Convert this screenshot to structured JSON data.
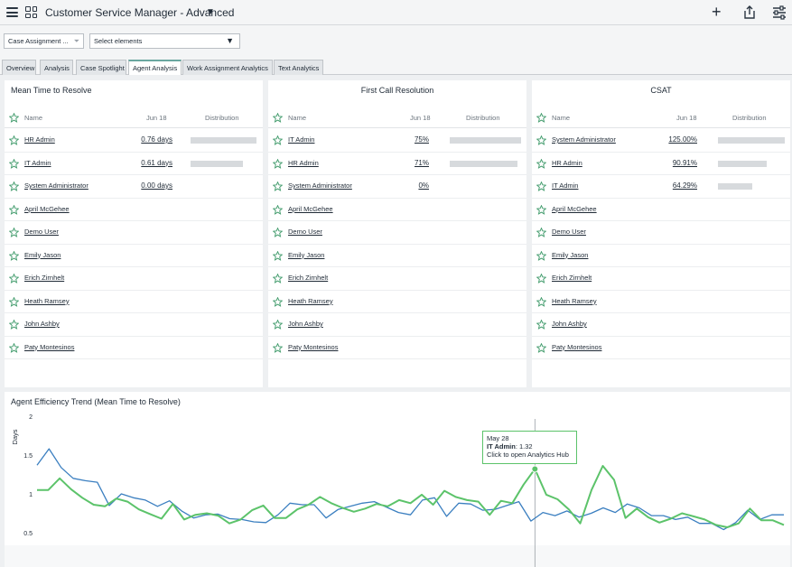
{
  "header": {
    "title": "Customer Service Manager - Advanced",
    "menu_icon": "hamburger-icon",
    "apps_icon": "grid-icon",
    "caret_icon": "caret-down-icon",
    "add_icon": "plus-icon",
    "share_icon": "share-icon",
    "settings_icon": "sliders-icon"
  },
  "filters": {
    "filter_select": "Case Assignment ...",
    "elements_select": "Select elements"
  },
  "tabs": [
    {
      "label": "Overview"
    },
    {
      "label": "Analysis"
    },
    {
      "label": "Case Spotlight"
    },
    {
      "label": "Agent Analysis"
    },
    {
      "label": "Work Assignment Analytics"
    },
    {
      "label": "Text Analytics"
    }
  ],
  "active_tab": "Agent Analysis",
  "panels": [
    {
      "title": "Mean Time to Resolve",
      "columns": {
        "name": "Name",
        "date": "Jun 18",
        "dist": "Distribution"
      },
      "rows": [
        {
          "name": "HR Admin",
          "value": "0.76 days",
          "share": 1.0
        },
        {
          "name": "IT Admin",
          "value": "0.61 days",
          "share": 0.8
        },
        {
          "name": "System Administrator",
          "value": "0.00 days",
          "share": 0
        },
        {
          "name": "April McGehee",
          "value": ""
        },
        {
          "name": "Demo User",
          "value": ""
        },
        {
          "name": "Emily Jason",
          "value": ""
        },
        {
          "name": "Erich Zirnhelt",
          "value": ""
        },
        {
          "name": "Heath Ramsey",
          "value": ""
        },
        {
          "name": "John Ashby",
          "value": ""
        },
        {
          "name": "Paty Montesinos",
          "value": ""
        }
      ]
    },
    {
      "title": "First Call Resolution",
      "columns": {
        "name": "Name",
        "date": "Jun 18",
        "dist": "Distribution"
      },
      "rows": [
        {
          "name": "IT Admin",
          "value": "75%",
          "share": 1.0
        },
        {
          "name": "HR Admin",
          "value": "71%",
          "share": 0.95
        },
        {
          "name": "System Administrator",
          "value": "0%",
          "share": 0
        },
        {
          "name": "April McGehee",
          "value": ""
        },
        {
          "name": "Demo User",
          "value": ""
        },
        {
          "name": "Emily Jason",
          "value": ""
        },
        {
          "name": "Erich Zirnhelt",
          "value": ""
        },
        {
          "name": "Heath Ramsey",
          "value": ""
        },
        {
          "name": "John Ashby",
          "value": ""
        },
        {
          "name": "Paty Montesinos",
          "value": ""
        }
      ]
    },
    {
      "title": "CSAT",
      "columns": {
        "name": "Name",
        "date": "Jun 18",
        "dist": "Distribution"
      },
      "rows": [
        {
          "name": "System Administrator",
          "value": "125.00%",
          "share": 1.0
        },
        {
          "name": "HR Admin",
          "value": "90.91%",
          "share": 0.73
        },
        {
          "name": "IT Admin",
          "value": "64.29%",
          "share": 0.51
        },
        {
          "name": "April McGehee",
          "value": ""
        },
        {
          "name": "Demo User",
          "value": ""
        },
        {
          "name": "Emily Jason",
          "value": ""
        },
        {
          "name": "Erich Zirnhelt",
          "value": ""
        },
        {
          "name": "Heath Ramsey",
          "value": ""
        },
        {
          "name": "John Ashby",
          "value": ""
        },
        {
          "name": "Paty Montesinos",
          "value": ""
        }
      ]
    }
  ],
  "colors": {
    "green": "#5cc36a",
    "blue": "#3b7fc0",
    "bar": "#d7dadd"
  },
  "chart_data": {
    "type": "line",
    "title": "Agent Efficiency Trend (Mean Time to Resolve)",
    "ylabel": "Days",
    "ylim": [
      0.5,
      2
    ],
    "yticks": [
      "2",
      "1.5",
      "1",
      "0.5"
    ],
    "ytick_values": [
      2,
      1.5,
      1,
      0.5
    ],
    "series": [
      {
        "color": "#3b7fc0",
        "values": [
          1.37,
          1.58,
          1.34,
          1.2,
          1.17,
          1.15,
          0.85,
          1.0,
          0.95,
          0.92,
          0.84,
          0.91,
          0.78,
          0.69,
          0.73,
          0.74,
          0.68,
          0.67,
          0.64,
          0.63,
          0.73,
          0.88,
          0.86,
          0.86,
          0.69,
          0.8,
          0.84,
          0.88,
          0.9,
          0.83,
          0.76,
          0.73,
          0.92,
          0.95,
          0.71,
          0.88,
          0.87,
          0.79,
          0.8,
          0.85,
          0.9,
          0.65,
          0.76,
          0.72,
          0.78,
          0.7,
          0.75,
          0.82,
          0.76,
          0.87,
          0.82,
          0.72,
          0.72,
          0.67,
          0.7,
          0.62,
          0.62,
          0.54,
          0.63,
          0.79,
          0.67,
          0.73,
          0.73
        ]
      },
      {
        "color": "#5cc36a",
        "values": [
          1.05,
          1.05,
          1.2,
          1.06,
          0.95,
          0.86,
          0.84,
          0.94,
          0.9,
          0.8,
          0.74,
          0.68,
          0.87,
          0.67,
          0.73,
          0.75,
          0.72,
          0.62,
          0.67,
          0.79,
          0.85,
          0.69,
          0.69,
          0.8,
          0.86,
          0.96,
          0.88,
          0.82,
          0.77,
          0.81,
          0.87,
          0.84,
          0.92,
          0.88,
          0.99,
          0.86,
          1.04,
          0.96,
          0.92,
          0.9,
          0.73,
          0.91,
          0.88,
          1.12,
          1.32,
          0.99,
          0.93,
          0.8,
          0.62,
          1.05,
          1.36,
          1.18,
          0.69,
          0.81,
          0.7,
          0.63,
          0.68,
          0.75,
          0.71,
          0.67,
          0.6,
          0.57,
          0.62,
          0.81,
          0.66,
          0.66,
          0.6
        ]
      }
    ],
    "grid": false
  },
  "tooltip": {
    "date": "May 28",
    "series": "IT Admin",
    "sep": ": ",
    "value": "1.32",
    "action": "Click to open Analytics Hub"
  }
}
